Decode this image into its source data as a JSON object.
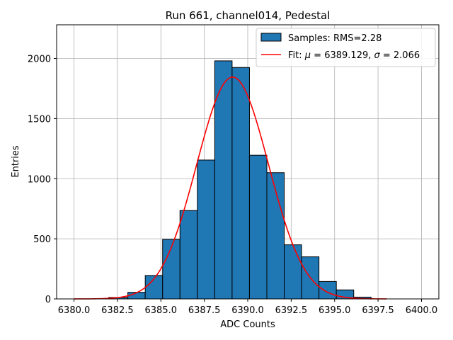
{
  "chart_data": {
    "type": "bar",
    "title": "Run 661, channel014, Pedestal",
    "xlabel": "ADC Counts",
    "ylabel": "Entries",
    "xlim": [
      6379.0,
      6401.0
    ],
    "ylim": [
      0,
      2280
    ],
    "xticks": [
      6380.0,
      6382.5,
      6385.0,
      6387.5,
      6390.0,
      6392.5,
      6395.0,
      6397.5,
      6400.0
    ],
    "xtick_labels": [
      "6380.0",
      "6382.5",
      "6385.0",
      "6387.5",
      "6390.0",
      "6392.5",
      "6395.0",
      "6397.5",
      "6400.0"
    ],
    "yticks": [
      0,
      500,
      1000,
      1500,
      2000
    ],
    "ytick_labels": [
      "0",
      "500",
      "1000",
      "1500",
      "2000"
    ],
    "grid": true,
    "legend_position": "top-right",
    "histogram": {
      "name": "Samples: RMS=2.28",
      "color": "#1f77b4",
      "edge_color": "#000000",
      "bins": [
        {
          "x0": 6382.0,
          "x1": 6383.1,
          "value": 12
        },
        {
          "x0": 6383.1,
          "x1": 6384.1,
          "value": 55
        },
        {
          "x0": 6384.1,
          "x1": 6385.1,
          "value": 195
        },
        {
          "x0": 6385.1,
          "x1": 6386.1,
          "value": 495
        },
        {
          "x0": 6386.1,
          "x1": 6387.1,
          "value": 735
        },
        {
          "x0": 6387.1,
          "x1": 6388.1,
          "value": 1155
        },
        {
          "x0": 6388.1,
          "x1": 6389.1,
          "value": 1980
        },
        {
          "x0": 6389.1,
          "x1": 6390.1,
          "value": 1925
        },
        {
          "x0": 6390.1,
          "x1": 6391.1,
          "value": 1195
        },
        {
          "x0": 6391.1,
          "x1": 6392.1,
          "value": 1050
        },
        {
          "x0": 6392.1,
          "x1": 6393.1,
          "value": 450
        },
        {
          "x0": 6393.1,
          "x1": 6394.1,
          "value": 350
        },
        {
          "x0": 6394.1,
          "x1": 6395.1,
          "value": 145
        },
        {
          "x0": 6395.1,
          "x1": 6396.1,
          "value": 75
        },
        {
          "x0": 6396.1,
          "x1": 6397.1,
          "value": 15
        }
      ]
    },
    "fit": {
      "name_prefix": "Fit: ",
      "mu_symbol": "μ",
      "sigma_symbol": "σ",
      "mu": 6389.129,
      "sigma": 2.066,
      "mu_text": " = 6389.129, ",
      "sigma_text": " = 2.066",
      "color": "#ff0000",
      "amplitude": 1845,
      "x_start": 6380.0,
      "x_end": 6398.0
    }
  }
}
